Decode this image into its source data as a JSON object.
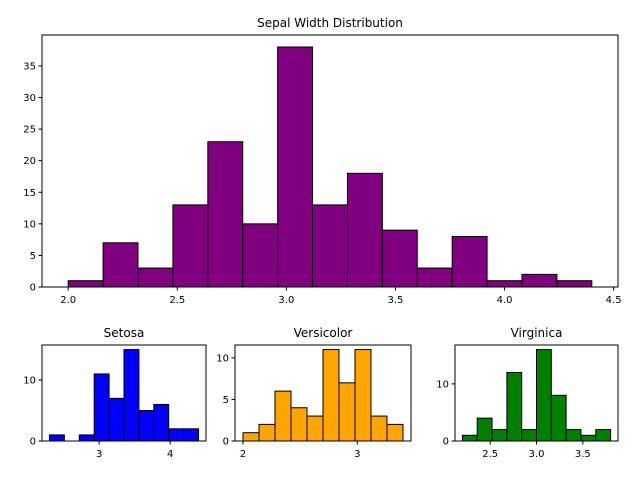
{
  "chart_data": [
    {
      "type": "histogram",
      "title": "Sepal Width Distribution",
      "color": "#800080",
      "edgecolor": "#000000",
      "bins": [
        2.0,
        2.16,
        2.32,
        2.48,
        2.64,
        2.8,
        2.96,
        3.12,
        3.28,
        3.44,
        3.6,
        3.76,
        3.92,
        4.08,
        4.24,
        4.4
      ],
      "values": [
        1,
        7,
        3,
        13,
        23,
        10,
        38,
        13,
        18,
        9,
        3,
        8,
        1,
        2,
        1
      ],
      "xlim": [
        1.88,
        4.52
      ],
      "ylim": [
        0,
        39.9
      ],
      "xticks": [
        {
          "value": 2,
          "label": "2.0"
        },
        2.5,
        {
          "value": 3,
          "label": "3.0"
        },
        3.5,
        {
          "value": 4,
          "label": "4.0"
        },
        4.5
      ],
      "yticks": [
        0,
        5,
        10,
        15,
        20,
        25,
        30,
        35
      ]
    },
    {
      "type": "histogram",
      "title": "Setosa",
      "color": "#0000ff",
      "edgecolor": "#000000",
      "bins": [
        2.3,
        2.51,
        2.72,
        2.93,
        3.14,
        3.35,
        3.56,
        3.77,
        3.98,
        4.19,
        4.4
      ],
      "values": [
        1,
        0,
        1,
        11,
        7,
        15,
        5,
        6,
        2,
        2
      ],
      "xlim": [
        2.195,
        4.505
      ],
      "ylim": [
        0,
        15.75
      ],
      "xticks": [
        3,
        4
      ],
      "yticks": [
        0,
        10
      ]
    },
    {
      "type": "histogram",
      "title": "Versicolor",
      "color": "#ffa500",
      "edgecolor": "#000000",
      "bins": [
        2.0,
        2.14,
        2.28,
        2.42,
        2.56,
        2.7,
        2.84,
        2.98,
        3.12,
        3.26,
        3.4
      ],
      "values": [
        1,
        2,
        6,
        4,
        3,
        11,
        7,
        11,
        3,
        2
      ],
      "xlim": [
        1.93,
        3.47
      ],
      "ylim": [
        0,
        11.55
      ],
      "xticks": [
        2,
        3
      ],
      "yticks": [
        0,
        5,
        10
      ]
    },
    {
      "type": "histogram",
      "title": "Virginica",
      "color": "#008000",
      "edgecolor": "#000000",
      "bins": [
        2.2,
        2.36,
        2.52,
        2.68,
        2.84,
        3.0,
        3.16,
        3.32,
        3.48,
        3.64,
        3.8
      ],
      "values": [
        1,
        4,
        2,
        12,
        2,
        16,
        8,
        2,
        1,
        2
      ],
      "xlim": [
        2.12,
        3.88
      ],
      "ylim": [
        0,
        16.8
      ],
      "xticks": [
        2.5,
        {
          "value": 3,
          "label": "3.0"
        },
        3.5
      ],
      "yticks": [
        0,
        10
      ]
    }
  ]
}
